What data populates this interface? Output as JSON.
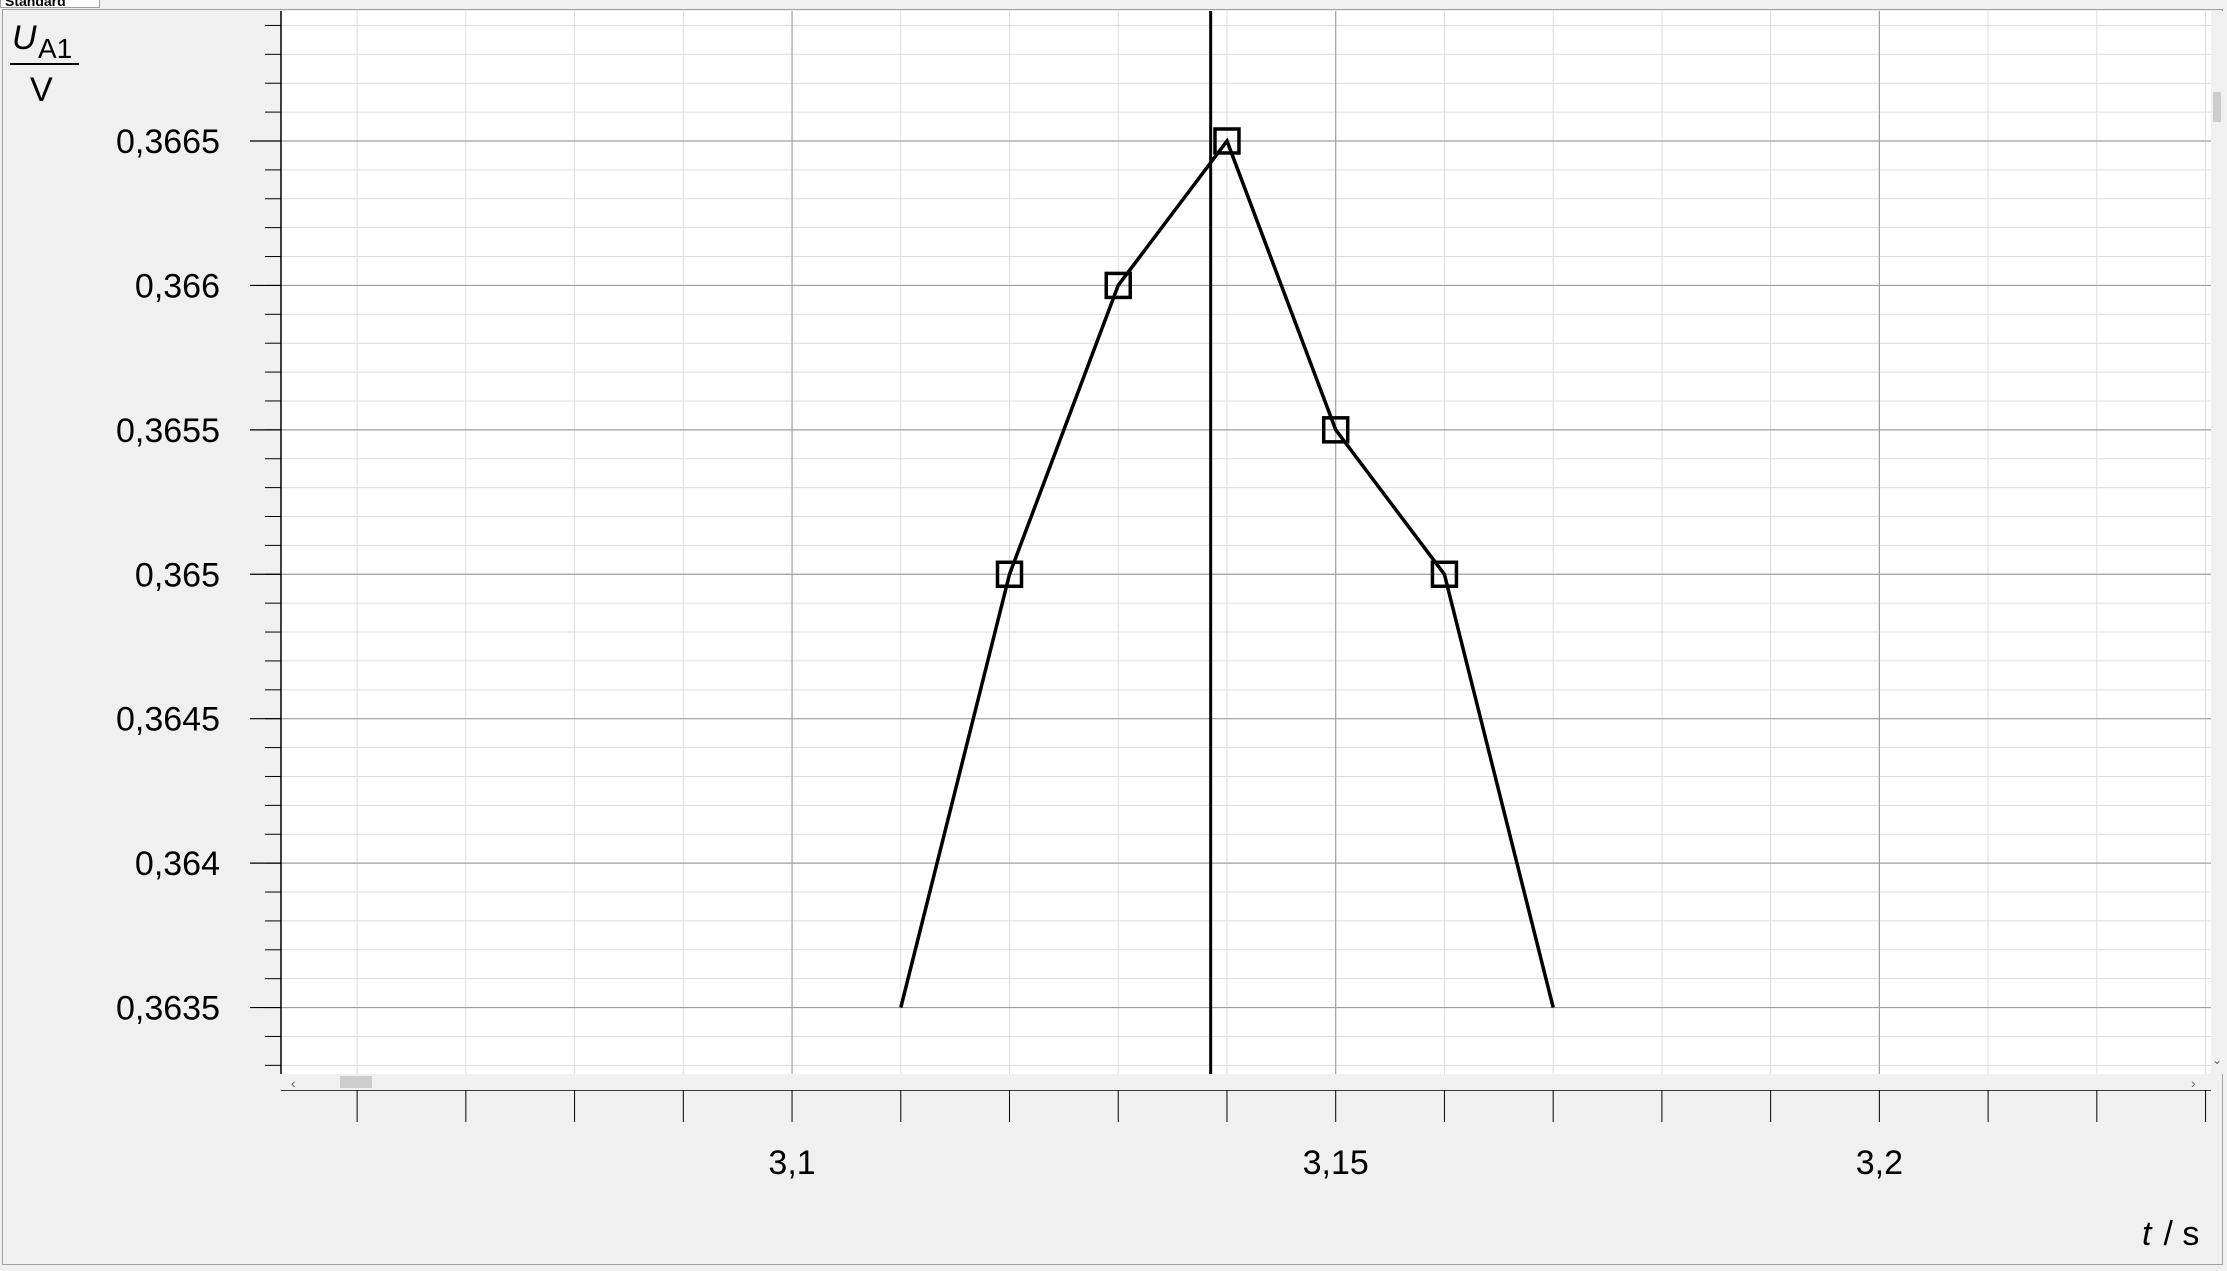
{
  "tab": {
    "label": "Standard"
  },
  "chart_data": {
    "type": "line",
    "y_label_symbol": "U",
    "y_label_subscript": "A1",
    "y_label_unit": "V",
    "x_label_symbol": "t",
    "x_label_unit": " / s",
    "xlim": [
      3.053,
      3.2305
    ],
    "ylim": [
      0.36327,
      0.36695
    ],
    "x_ticks": [
      {
        "value": 3.1,
        "label": "3,1"
      },
      {
        "value": 3.15,
        "label": "3,15"
      },
      {
        "value": 3.2,
        "label": "3,2"
      }
    ],
    "x_minor_step": 0.01,
    "y_ticks": [
      {
        "value": 0.3635,
        "label": "0,3635"
      },
      {
        "value": 0.364,
        "label": "0,364"
      },
      {
        "value": 0.3645,
        "label": "0,3645"
      },
      {
        "value": 0.365,
        "label": "0,365"
      },
      {
        "value": 0.3655,
        "label": "0,3655"
      },
      {
        "value": 0.366,
        "label": "0,366"
      },
      {
        "value": 0.3665,
        "label": "0,3665"
      }
    ],
    "y_minor_step": 0.0001,
    "series": [
      {
        "marker": "square",
        "x": [
          3.11,
          3.12,
          3.13,
          3.14,
          3.15,
          3.16,
          3.17
        ],
        "y": [
          0.3635,
          0.365,
          0.366,
          0.3665,
          0.3655,
          0.365,
          0.3635
        ],
        "marked": [
          false,
          true,
          true,
          true,
          true,
          true,
          false
        ]
      }
    ],
    "cursor_x": 3.1385,
    "grid": true,
    "colors": {
      "line": "#000000",
      "grid_major": "#a0a0a0",
      "grid_minor": "#dcdcdc",
      "plot_bg": "#ffffff",
      "background": "#f0f0f0"
    }
  }
}
